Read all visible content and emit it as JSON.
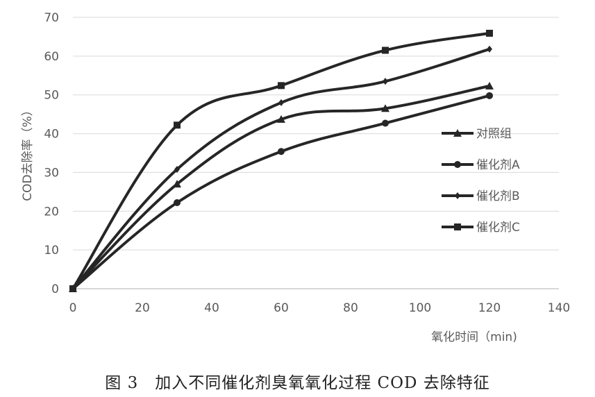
{
  "chart_data": {
    "type": "line",
    "x": [
      0,
      30,
      60,
      90,
      120
    ],
    "series": [
      {
        "name": "对照组",
        "values": [
          0,
          27,
          43.7,
          46.5,
          52.3
        ],
        "marker": "triangle"
      },
      {
        "name": "催化剂A",
        "values": [
          0,
          22.2,
          35.4,
          42.7,
          49.8
        ],
        "marker": "circle"
      },
      {
        "name": "催化剂B",
        "values": [
          0,
          30.8,
          48,
          53.5,
          61.8
        ],
        "marker": "diamond"
      },
      {
        "name": "催化剂C",
        "values": [
          0,
          42.2,
          52.4,
          61.5,
          65.9
        ],
        "marker": "square"
      }
    ],
    "xlabel": "氧化时间（min)",
    "ylabel": "COD去除率（%）",
    "xlim": [
      0,
      140
    ],
    "ylim": [
      0,
      70
    ],
    "xticks": [
      0,
      20,
      40,
      60,
      80,
      100,
      120,
      140
    ],
    "yticks": [
      0,
      10,
      20,
      30,
      40,
      50,
      60,
      70
    ],
    "grid": "horizontal",
    "legend_position": "right",
    "line_color": "#262626",
    "grid_color": "#d9d9d9"
  },
  "caption": "图 3　加入不同催化剂臭氧氧化过程 COD 去除特征"
}
